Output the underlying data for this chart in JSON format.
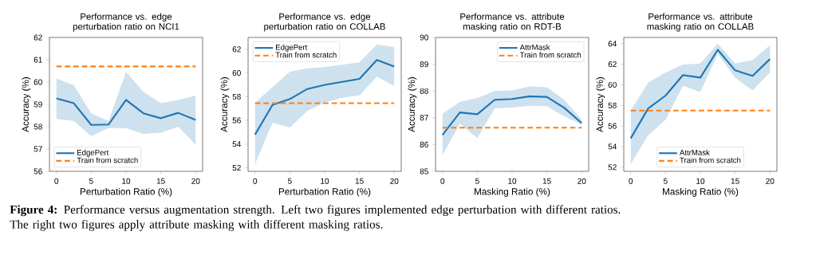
{
  "chart_data": [
    {
      "type": "line",
      "title": "Performance vs. edge perturbation ratio on NCI1",
      "xlabel": "Perturbation Ratio (%)",
      "ylabel": "Accuracy (%)",
      "x": [
        0,
        2.5,
        5,
        7.5,
        10,
        12.5,
        15,
        17.5,
        20
      ],
      "xlim": [
        -1,
        21
      ],
      "xticks": [
        0,
        5,
        10,
        15,
        20
      ],
      "ylim": [
        56,
        62
      ],
      "yticks": [
        56,
        57,
        58,
        59,
        60,
        61,
        62
      ],
      "series": [
        {
          "name": "EdgePert",
          "color": "#1f77b4",
          "values": [
            59.27,
            59.05,
            58.08,
            58.1,
            59.2,
            58.6,
            58.38,
            58.62,
            58.3
          ],
          "lower": [
            58.35,
            58.26,
            57.57,
            57.94,
            57.94,
            57.67,
            57.73,
            58.0,
            57.2
          ],
          "upper": [
            60.16,
            59.86,
            58.6,
            58.26,
            60.46,
            59.56,
            59.05,
            59.2,
            59.39
          ]
        },
        {
          "name": "Train from scratch",
          "color": "#ff7f0e",
          "line_style": "dashed",
          "values": [
            60.7,
            60.7,
            60.7,
            60.7,
            60.7,
            60.7,
            60.7,
            60.7,
            60.7
          ]
        }
      ],
      "legend": "bottom left",
      "marker": "none",
      "annotations": [
        "**Figure 4:** Performance versus augmentation strength. Left two figures implemented edge perturbation with different ratios. The right two figures apply attribute masking with different masking ratios."
      ]
    },
    {
      "type": "line",
      "title": "Performance vs. edge perturbation ratio on COLLAB",
      "xlabel": "Perturbation Ratio (%)",
      "ylabel": "Accuracy (%)",
      "x": [
        0,
        2.5,
        5,
        7.5,
        10,
        12.5,
        15,
        17.5,
        20
      ],
      "xlim": [
        -1,
        21
      ],
      "xticks": [
        0,
        5,
        10,
        15,
        20
      ],
      "ylim": [
        51.7,
        63
      ],
      "yticks": [
        52,
        54,
        56,
        58,
        60,
        62
      ],
      "series": [
        {
          "name": "EdgePert",
          "color": "#1f77b4",
          "values": [
            54.8,
            57.3,
            57.8,
            58.65,
            59.0,
            59.25,
            59.5,
            61.1,
            60.55
          ],
          "lower": [
            52.3,
            55.8,
            55.4,
            56.8,
            57.5,
            57.9,
            58.1,
            59.7,
            58.9
          ],
          "upper": [
            57.5,
            58.8,
            60.1,
            60.4,
            60.5,
            60.7,
            60.9,
            62.4,
            62.2
          ]
        },
        {
          "name": "Train from scratch",
          "color": "#ff7f0e",
          "line_style": "dashed",
          "values": [
            57.45,
            57.45,
            57.45,
            57.45,
            57.45,
            57.45,
            57.45,
            57.45,
            57.45
          ]
        }
      ],
      "legend": "top left",
      "marker": "none"
    },
    {
      "type": "line",
      "title": "Performance vs. attribute masking ratio on RDT-B",
      "xlabel": "Masking Ratio (%)",
      "ylabel": "Accuracy (%)",
      "x": [
        0,
        2.5,
        5,
        7.5,
        10,
        12.5,
        15,
        17.5,
        20
      ],
      "xlim": [
        -1,
        21
      ],
      "xticks": [
        0,
        5,
        10,
        15,
        20
      ],
      "ylim": [
        85,
        90
      ],
      "yticks": [
        85,
        86,
        87,
        88,
        89,
        90
      ],
      "series": [
        {
          "name": "AttrMask",
          "color": "#1f77b4",
          "values": [
            86.36,
            87.2,
            87.13,
            87.67,
            87.7,
            87.8,
            87.78,
            87.37,
            86.8
          ],
          "lower": [
            85.6,
            86.78,
            86.24,
            87.35,
            87.38,
            87.45,
            87.43,
            87.05,
            86.75
          ],
          "upper": [
            87.15,
            87.6,
            87.74,
            88.0,
            88.02,
            88.17,
            88.14,
            87.67,
            86.93
          ]
        },
        {
          "name": "Train from scratch",
          "color": "#ff7f0e",
          "line_style": "dashed",
          "values": [
            86.63,
            86.63,
            86.63,
            86.63,
            86.63,
            86.63,
            86.63,
            86.63,
            86.63
          ]
        }
      ],
      "legend": "top right",
      "marker": "none"
    },
    {
      "type": "line",
      "title": "Performance vs. attribute masking ratio on COLLAB",
      "xlabel": "Masking Ratio (%)",
      "ylabel": "Accuracy (%)",
      "x": [
        0,
        2.5,
        5,
        7.5,
        10,
        12.5,
        15,
        17.5,
        20
      ],
      "xlim": [
        -1,
        21
      ],
      "xticks": [
        0,
        5,
        10,
        15,
        20
      ],
      "ylim": [
        51.6,
        64.6
      ],
      "yticks": [
        52,
        54,
        56,
        58,
        60,
        62,
        64
      ],
      "series": [
        {
          "name": "AttrMask",
          "color": "#1f77b4",
          "values": [
            54.8,
            57.7,
            58.95,
            60.94,
            60.7,
            63.4,
            61.4,
            60.86,
            62.5
          ],
          "lower": [
            52.3,
            55.1,
            56.6,
            59.9,
            59.3,
            63.0,
            60.7,
            59.45,
            61.2
          ],
          "upper": [
            57.5,
            60.2,
            61.2,
            61.96,
            62.06,
            64.0,
            62.06,
            62.4,
            63.85
          ]
        },
        {
          "name": "Train from scratch",
          "color": "#ff7f0e",
          "line_style": "dashed",
          "values": [
            57.5,
            57.5,
            57.5,
            57.5,
            57.5,
            57.5,
            57.5,
            57.5,
            57.5
          ]
        }
      ],
      "legend": "bottom",
      "marker": "none"
    }
  ]
}
